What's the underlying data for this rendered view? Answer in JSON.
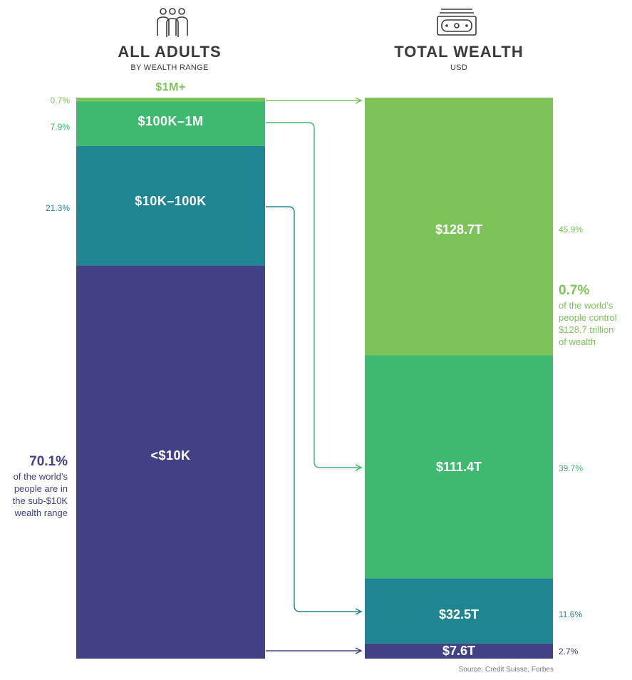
{
  "header": {
    "left_title": "ALL ADULTS",
    "left_subtitle": "BY WEALTH RANGE",
    "right_title": "TOTAL WEALTH",
    "right_subtitle": "USD",
    "left_icon": "people-icon",
    "right_icon": "money-icon"
  },
  "colors": {
    "m1plus": "#7dc35a",
    "k100_1m": "#3fb870",
    "k10_100": "#1f8592",
    "under10k": "#414286",
    "header_text": "#3a3a3a"
  },
  "chart_data": {
    "type": "bar",
    "categories": [
      "<$10K",
      "$10K–100K",
      "$100K–1M",
      "$1M+"
    ],
    "series": [
      {
        "name": "ALL ADULTS",
        "unit": "%",
        "values": [
          70.1,
          21.3,
          7.9,
          0.7
        ],
        "labels": [
          "70.1%",
          "21.3%",
          "7.9%",
          "0.7%"
        ]
      },
      {
        "name": "TOTAL WEALTH",
        "unit": "USD trillions",
        "values": [
          7.6,
          32.5,
          111.4,
          128.7
        ],
        "bar_labels": [
          "$7.6T",
          "$32.5T",
          "$111.4T",
          "$128.7T"
        ],
        "share_labels": [
          "2.7%",
          "11.6%",
          "39.7%",
          "45.9%"
        ]
      }
    ]
  },
  "notes": {
    "left_big": "70.1%",
    "left_text": [
      "of the world’s",
      "people are in",
      "the sub-$10K",
      "wealth range"
    ],
    "right_big": "0.7%",
    "right_text": [
      "of the world’s",
      "people control",
      "$128.7 trillion",
      "of wealth"
    ]
  },
  "source": "Source: Credit Suisse, Forbes"
}
